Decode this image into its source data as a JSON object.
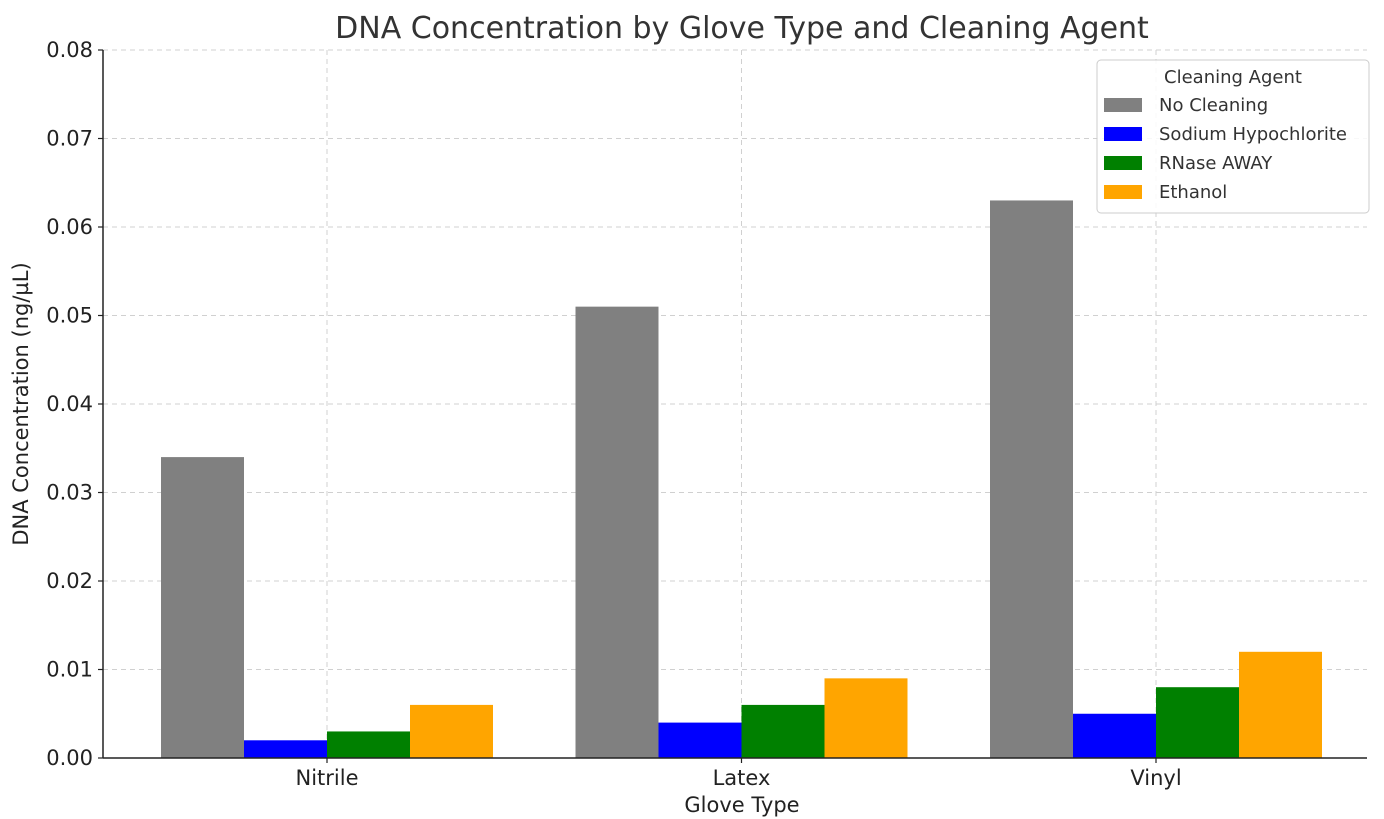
{
  "chart_data": {
    "type": "bar",
    "title": "DNA Concentration by Glove Type and Cleaning Agent",
    "xlabel": "Glove Type",
    "ylabel": "DNA Concentration (ng/µL)",
    "categories": [
      "Nitrile",
      "Latex",
      "Vinyl"
    ],
    "ylim": [
      0,
      0.08
    ],
    "yticks": [
      "0.00",
      "0.01",
      "0.02",
      "0.03",
      "0.04",
      "0.05",
      "0.06",
      "0.07",
      "0.08"
    ],
    "grid": true,
    "legend": {
      "title": "Cleaning Agent",
      "placement": "top-right"
    },
    "series": [
      {
        "name": "No Cleaning",
        "color": "#808080",
        "values": [
          0.034,
          0.051,
          0.063
        ]
      },
      {
        "name": "Sodium Hypochlorite",
        "color": "#0000ff",
        "values": [
          0.002,
          0.004,
          0.005
        ]
      },
      {
        "name": "RNase AWAY",
        "color": "#008000",
        "values": [
          0.003,
          0.006,
          0.008
        ]
      },
      {
        "name": "Ethanol",
        "color": "#ffa500",
        "values": [
          0.006,
          0.009,
          0.012
        ]
      }
    ]
  }
}
